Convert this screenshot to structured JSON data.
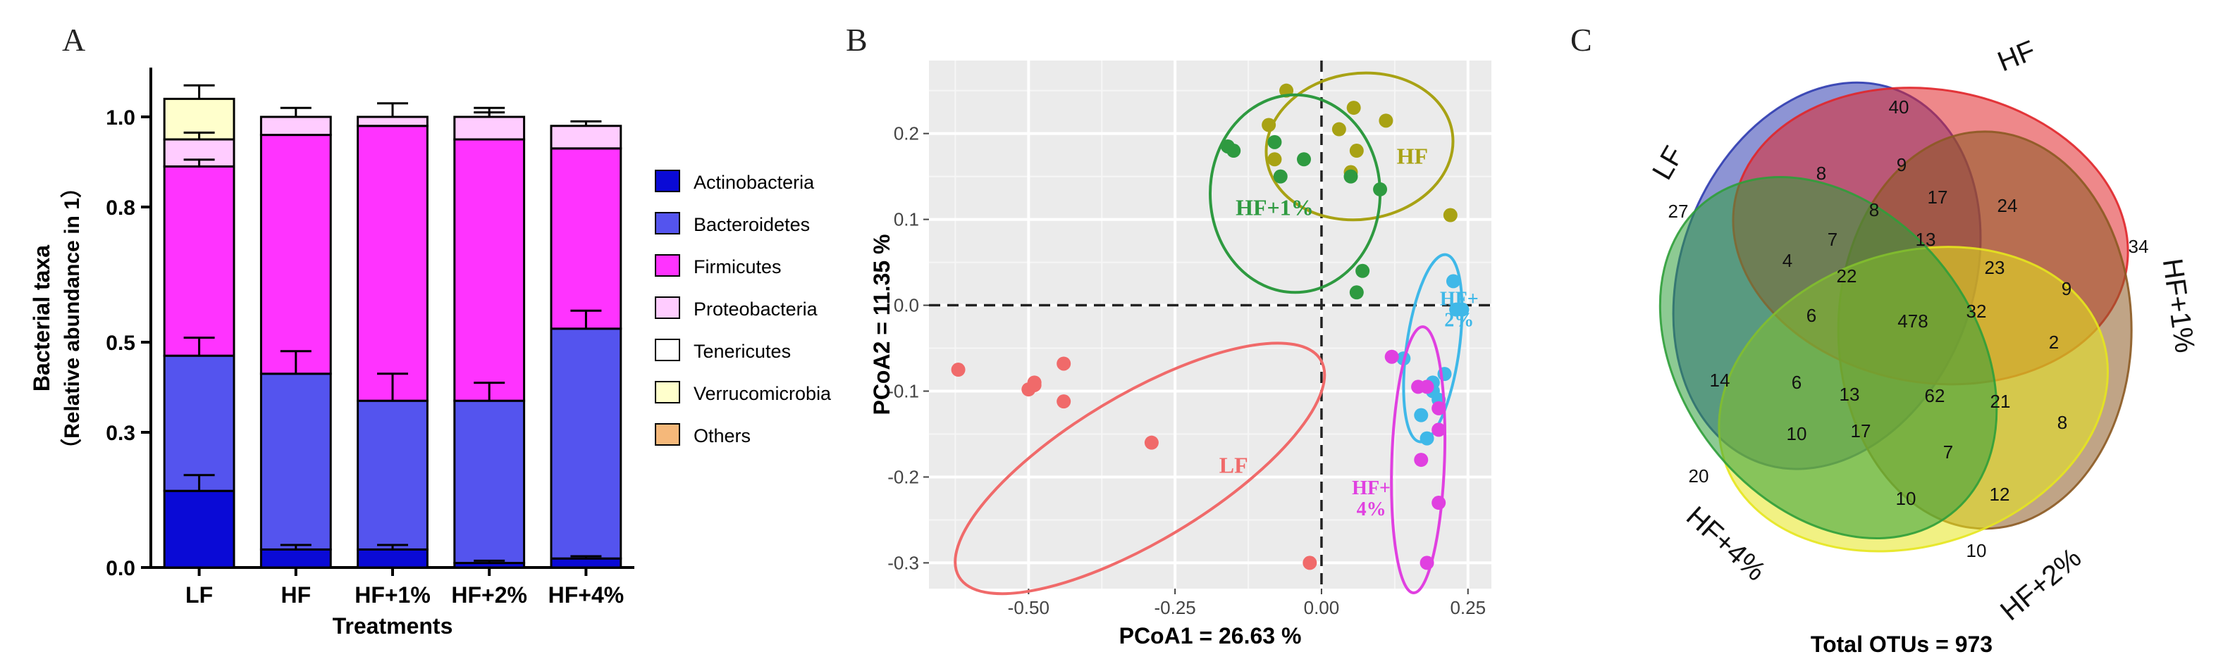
{
  "chart_data": [
    {
      "panel": "A",
      "type": "bar",
      "stacked": true,
      "title": "",
      "xlabel": "Treatments",
      "ylabel": "Bacterial taxa",
      "ylabel2": "（Relative abundance in 1）",
      "ylim": [
        0,
        1.08
      ],
      "yticks": [
        0.0,
        0.3,
        0.5,
        0.8,
        1.0
      ],
      "ytick_labels": [
        "0.0",
        "0.3",
        "0.5",
        "0.8",
        "1.0"
      ],
      "categories": [
        "LF",
        "HF",
        "HF+1%",
        "HF+2%",
        "HF+4%"
      ],
      "series": [
        {
          "name": "Actinobacteria",
          "color": "#0a0ad6",
          "values": [
            0.17,
            0.04,
            0.04,
            0.01,
            0.02
          ],
          "err": [
            0.035,
            0.01,
            0.01,
            0.005,
            0.005
          ]
        },
        {
          "name": "Bacteroidetes",
          "color": "#5454ee",
          "values": [
            0.3,
            0.39,
            0.33,
            0.36,
            0.51
          ],
          "err": [
            0.04,
            0.05,
            0.06,
            0.04,
            0.04
          ]
        },
        {
          "name": "Firmicutes",
          "color": "#ff33ff",
          "values": [
            0.42,
            0.53,
            0.61,
            0.58,
            0.4
          ],
          "err": [
            0.015,
            0.0,
            0.0,
            0.0,
            0.0
          ]
        },
        {
          "name": "Proteobacteria",
          "color": "#ffccff",
          "values": [
            0.06,
            0.04,
            0.02,
            0.05,
            0.05
          ],
          "err": [
            0.015,
            0.0,
            0.0,
            0.02,
            0.0
          ]
        },
        {
          "name": "Tenericutes",
          "color": "#ffffff",
          "values": [
            0.0,
            0.0,
            0.0,
            0.0,
            0.0
          ],
          "err": [
            0,
            0,
            0,
            0,
            0
          ]
        },
        {
          "name": "Verrucomicrobia",
          "color": "#ffffcc",
          "values": [
            0.09,
            0.0,
            0.0,
            0.0,
            0.0
          ],
          "err": [
            0.03,
            0.02,
            0.03,
            0.01,
            0.01
          ]
        },
        {
          "name": "Others",
          "color": "#f5b87a",
          "values": [
            0.0,
            0.0,
            0.0,
            0.0,
            0.0
          ],
          "err": [
            0,
            0,
            0,
            0,
            0
          ]
        }
      ]
    },
    {
      "panel": "B",
      "type": "scatter",
      "title": "",
      "xlabel": "PCoA1 = 26.63 %",
      "ylabel": "PCoA2 = 11.35 %",
      "xlim": [
        -0.67,
        0.29
      ],
      "ylim": [
        -0.33,
        0.285
      ],
      "xticks": [
        -0.5,
        -0.25,
        0.0,
        0.25
      ],
      "xtick_labels": [
        "-0.50",
        "-0.25",
        "0.00",
        "0.25"
      ],
      "yticks": [
        0.2,
        0.1,
        0.0,
        -0.1,
        -0.2,
        -0.3
      ],
      "ytick_labels": [
        "0.2",
        "0.1",
        "0.0",
        "-0.1",
        "-0.2",
        "-0.3"
      ],
      "grid": true,
      "series": [
        {
          "name": "LF",
          "label": "LF",
          "color": "#f06a6a",
          "label_at": [
            -0.15,
            -0.195
          ],
          "x": [
            -0.62,
            -0.5,
            -0.49,
            -0.44,
            -0.44,
            -0.29,
            -0.02,
            -0.49
          ],
          "y": [
            -0.075,
            -0.098,
            -0.09,
            -0.068,
            -0.112,
            -0.16,
            -0.3,
            -0.093
          ],
          "ellipse": {
            "cx": -0.31,
            "cy": -0.19,
            "rx": 0.36,
            "ry": 0.085,
            "rot": -31
          }
        },
        {
          "name": "HF",
          "label": "HF",
          "color": "#a8a214",
          "label_at": [
            0.155,
            0.165
          ],
          "x": [
            -0.06,
            -0.09,
            -0.08,
            0.03,
            0.055,
            0.06,
            0.05,
            0.11,
            0.22
          ],
          "y": [
            0.25,
            0.21,
            0.17,
            0.205,
            0.23,
            0.18,
            0.155,
            0.215,
            0.105
          ],
          "ellipse": {
            "cx": 0.065,
            "cy": 0.185,
            "rx": 0.16,
            "ry": 0.085,
            "rot": -8
          }
        },
        {
          "name": "HF+1%",
          "label": "HF+1%",
          "color": "#2e9a40",
          "label_at": [
            -0.08,
            0.105
          ],
          "x": [
            -0.16,
            -0.15,
            -0.08,
            -0.07,
            -0.03,
            0.1,
            0.07,
            0.06,
            0.05
          ],
          "y": [
            0.185,
            0.18,
            0.19,
            0.15,
            0.17,
            0.135,
            0.04,
            0.015,
            0.15
          ],
          "ellipse": {
            "cx": -0.045,
            "cy": 0.13,
            "rx": 0.145,
            "ry": 0.115,
            "rot": 0
          }
        },
        {
          "name": "HF+2%",
          "label": "HF+2%",
          "label1": "HF+",
          "label2": "2%",
          "color": "#3fb8e8",
          "label_at": [
            0.235,
            0.0
          ],
          "x": [
            0.225,
            0.23,
            0.24,
            0.21,
            0.14,
            0.19,
            0.17,
            0.18,
            0.19,
            0.2
          ],
          "y": [
            0.028,
            -0.005,
            -0.005,
            -0.08,
            -0.062,
            -0.1,
            -0.128,
            -0.155,
            -0.09,
            -0.11
          ],
          "ellipse": {
            "cx": 0.19,
            "cy": -0.05,
            "rx": 0.045,
            "ry": 0.11,
            "rot": 8
          }
        },
        {
          "name": "HF+4%",
          "label": "HF+4%",
          "label1": "HF+",
          "label2": "4%",
          "color": "#e040e0",
          "label_at": [
            0.085,
            -0.22
          ],
          "x": [
            0.12,
            0.165,
            0.18,
            0.2,
            0.2,
            0.17,
            0.2,
            0.18
          ],
          "y": [
            -0.06,
            -0.095,
            -0.095,
            -0.12,
            -0.145,
            -0.18,
            -0.23,
            -0.3
          ],
          "ellipse": {
            "cx": 0.165,
            "cy": -0.18,
            "rx": 0.045,
            "ry": 0.155,
            "rot": 2
          }
        }
      ]
    },
    {
      "panel": "C",
      "type": "venn",
      "title": "Total OTUs = 973",
      "sets": [
        {
          "name": "LF",
          "color": "#2f3cb0"
        },
        {
          "name": "HF",
          "color": "#e0262a"
        },
        {
          "name": "HF+1%",
          "color": "#8c5a22"
        },
        {
          "name": "HF+2%",
          "color": "#e6e61e"
        },
        {
          "name": "HF+4%",
          "color": "#2f9e3a"
        }
      ],
      "counts": [
        "27",
        "40",
        "34",
        "10",
        "20",
        "8",
        "9",
        "17",
        "24",
        "7",
        "8",
        "13",
        "23",
        "9",
        "4",
        "22",
        "478",
        "32",
        "2",
        "6",
        "14",
        "6",
        "13",
        "62",
        "21",
        "8",
        "10",
        "17",
        "7",
        "12",
        "10"
      ]
    }
  ],
  "panel_labels": {
    "a": "A",
    "b": "B",
    "c": "C"
  }
}
